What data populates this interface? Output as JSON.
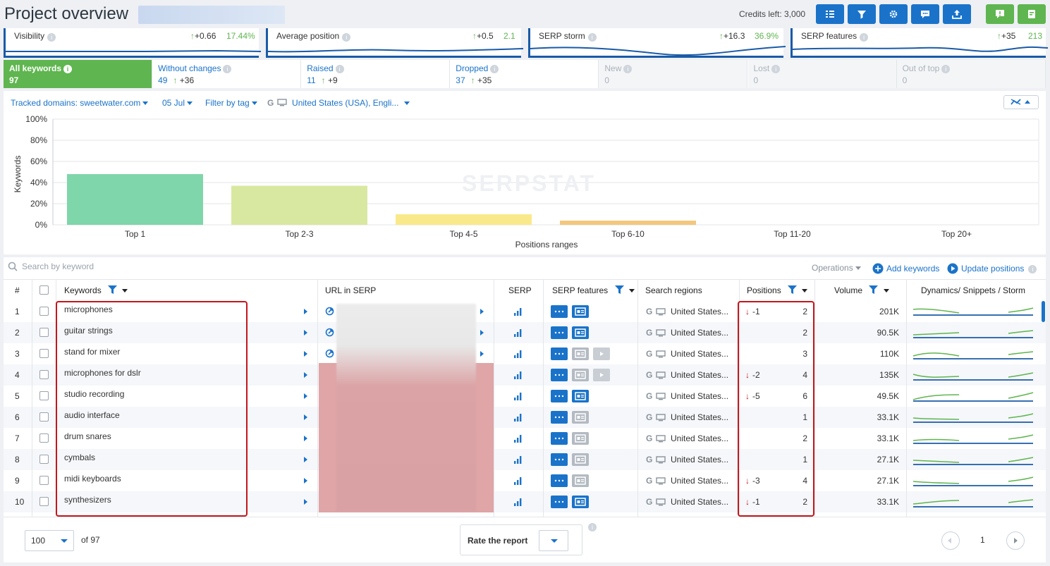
{
  "header": {
    "title": "Project overview",
    "credits": "Credits left: 3,000",
    "buttons": [
      "list-icon",
      "filter-icon",
      "gear-icon",
      "chat-icon",
      "export-icon",
      "alert-icon",
      "book-icon"
    ]
  },
  "metrics": [
    {
      "label": "Visibility",
      "delta": "+0.66",
      "value": "17.44%"
    },
    {
      "label": "Average position",
      "delta": "+0.5",
      "value": "2.1"
    },
    {
      "label": "SERP storm",
      "delta": "+16.3",
      "value": "36.9%"
    },
    {
      "label": "SERP features",
      "delta": "+35",
      "value": "213"
    }
  ],
  "tabs": [
    {
      "name": "All keywords",
      "count": "97",
      "change": "",
      "state": "active"
    },
    {
      "name": "Without changes",
      "count": "49",
      "change": "+36",
      "state": "normal"
    },
    {
      "name": "Raised",
      "count": "11",
      "change": "+9",
      "state": "normal"
    },
    {
      "name": "Dropped",
      "count": "37",
      "change": "+35",
      "state": "normal"
    },
    {
      "name": "New",
      "count": "0",
      "change": "",
      "state": "disabled"
    },
    {
      "name": "Lost",
      "count": "0",
      "change": "",
      "state": "disabled"
    },
    {
      "name": "Out of top",
      "count": "0",
      "change": "",
      "state": "disabled"
    }
  ],
  "filters": {
    "domains": "Tracked domains: sweetwater.com",
    "date": "05 Jul",
    "tag": "Filter by tag",
    "region": "United States (USA), Engli..."
  },
  "chart_data": {
    "type": "bar",
    "categories": [
      "Top 1",
      "Top 2-3",
      "Top 4-5",
      "Top 6-10",
      "Top 11-20",
      "Top 20+"
    ],
    "values": [
      48,
      37,
      10,
      4,
      0,
      0
    ],
    "colors": [
      "#7fd6aa",
      "#d8e8a0",
      "#f9e98a",
      "#f3c77d",
      "#cccccc",
      "#cccccc"
    ],
    "xlabel": "Positions ranges",
    "ylabel": "Keywords",
    "yticks": [
      "0%",
      "20%",
      "40%",
      "60%",
      "80%",
      "100%"
    ],
    "ylim": [
      0,
      100
    ],
    "watermark": "SERPSTAT"
  },
  "table": {
    "search_placeholder": "Search by keyword",
    "operations": "Operations",
    "add_keywords": "Add keywords",
    "update_positions": "Update positions",
    "columns": {
      "num": "#",
      "keywords": "Keywords",
      "url": "URL in SERP",
      "serp": "SERP",
      "features": "SERP features",
      "regions": "Search regions",
      "positions": "Positions",
      "volume": "Volume",
      "dynamics": "Dynamics/ Snippets / Storm"
    },
    "rows": [
      {
        "n": "1",
        "kw": "microphones",
        "region": "United States...",
        "change": "-1",
        "pos": "2",
        "vol": "201K",
        "chips": 2
      },
      {
        "n": "2",
        "kw": "guitar strings",
        "region": "United States...",
        "change": "",
        "pos": "2",
        "vol": "90.5K",
        "chips": 2
      },
      {
        "n": "3",
        "kw": "stand for mixer",
        "region": "United States...",
        "change": "",
        "pos": "3",
        "vol": "110K",
        "chips": 3
      },
      {
        "n": "4",
        "kw": "microphones for dslr",
        "region": "United States...",
        "change": "-2",
        "pos": "4",
        "vol": "135K",
        "chips": 3
      },
      {
        "n": "5",
        "kw": "studio recording",
        "region": "United States...",
        "change": "-5",
        "pos": "6",
        "vol": "49.5K",
        "chips": 2
      },
      {
        "n": "6",
        "kw": "audio interface",
        "region": "United States...",
        "change": "",
        "pos": "1",
        "vol": "33.1K",
        "chips": 2
      },
      {
        "n": "7",
        "kw": "drum snares",
        "region": "United States...",
        "change": "",
        "pos": "2",
        "vol": "33.1K",
        "chips": 2
      },
      {
        "n": "8",
        "kw": "cymbals",
        "region": "United States...",
        "change": "",
        "pos": "1",
        "vol": "27.1K",
        "chips": 2
      },
      {
        "n": "9",
        "kw": "midi keyboards",
        "region": "United States...",
        "change": "-3",
        "pos": "4",
        "vol": "27.1K",
        "chips": 2
      },
      {
        "n": "10",
        "kw": "synthesizers",
        "region": "United States...",
        "change": "-1",
        "pos": "2",
        "vol": "33.1K",
        "chips": 2
      }
    ]
  },
  "footer": {
    "per_page": "100",
    "of_total": "of 97",
    "rate_label": "Rate the report",
    "page": "1"
  }
}
